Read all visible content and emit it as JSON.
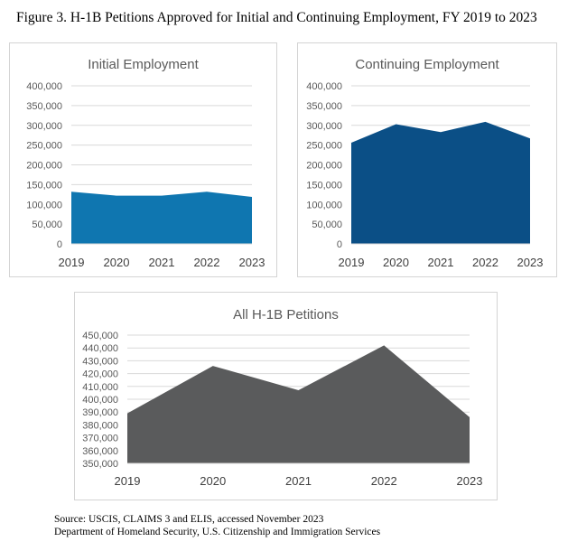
{
  "figure_title": "Figure 3. H-1B Petitions Approved for Initial and Continuing Employment, FY 2019 to 2023",
  "source_lines": [
    "Source: USCIS, CLAIMS 3 and ELIS, accessed November 2023",
    "Department of Homeland Security, U.S. Citizenship and Immigration Services"
  ],
  "colors": {
    "initial": "#0f76b0",
    "continuing": "#0b4f86",
    "all": "#5a5b5c"
  },
  "chart_data": [
    {
      "id": "initial",
      "type": "area",
      "title": "Initial Employment",
      "categories": [
        "2019",
        "2020",
        "2021",
        "2022",
        "2023"
      ],
      "values": [
        132000,
        122000,
        122000,
        132000,
        119000
      ],
      "ylim": [
        0,
        400000
      ],
      "yticks": [
        0,
        50000,
        100000,
        150000,
        200000,
        250000,
        300000,
        350000,
        400000
      ],
      "ytick_labels": [
        "0",
        "50,000",
        "100,000",
        "150,000",
        "200,000",
        "250,000",
        "300,000",
        "350,000",
        "400,000"
      ],
      "grid": true,
      "legend": "none"
    },
    {
      "id": "continuing",
      "type": "area",
      "title": "Continuing Employment",
      "categories": [
        "2019",
        "2020",
        "2021",
        "2022",
        "2023"
      ],
      "values": [
        256000,
        303000,
        283000,
        309000,
        267000
      ],
      "ylim": [
        0,
        400000
      ],
      "yticks": [
        0,
        50000,
        100000,
        150000,
        200000,
        250000,
        300000,
        350000,
        400000
      ],
      "ytick_labels": [
        "0",
        "50,000",
        "100,000",
        "150,000",
        "200,000",
        "250,000",
        "300,000",
        "350,000",
        "400,000"
      ],
      "grid": true,
      "legend": "none"
    },
    {
      "id": "all",
      "type": "area",
      "title": "All H-1B Petitions",
      "categories": [
        "2019",
        "2020",
        "2021",
        "2022",
        "2023"
      ],
      "values": [
        389000,
        426000,
        407000,
        442000,
        386000
      ],
      "ylim": [
        350000,
        450000
      ],
      "yticks": [
        350000,
        360000,
        370000,
        380000,
        390000,
        400000,
        410000,
        420000,
        430000,
        440000,
        450000
      ],
      "ytick_labels": [
        "350,000",
        "360,000",
        "370,000",
        "380,000",
        "390,000",
        "400,000",
        "410,000",
        "420,000",
        "430,000",
        "440,000",
        "450,000"
      ],
      "grid": true,
      "legend": "none"
    }
  ]
}
